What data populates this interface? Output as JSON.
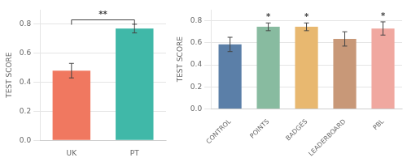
{
  "chart_data": [
    {
      "type": "bar",
      "categories": [
        "UK",
        "PT"
      ],
      "values": [
        0.48,
        0.77
      ],
      "errors": [
        0.05,
        0.03
      ],
      "colors": [
        "#f07860",
        "#40b8a8"
      ],
      "ylabel": "TEST SCORE",
      "ylim": [
        0.0,
        0.9
      ],
      "yticks": [
        {
          "value": 0.0,
          "label": "0.0"
        },
        0.2,
        0.4,
        0.6,
        0.8
      ],
      "grid": true,
      "annotations": [
        {
          "text": "**",
          "from": "UK",
          "to": "PT",
          "y": 0.83
        }
      ]
    },
    {
      "type": "bar",
      "categories": [
        "CONTROL",
        "POINTS",
        "BADGES",
        "LEADERBOARD",
        "PBL"
      ],
      "values": [
        0.585,
        0.745,
        0.745,
        0.635,
        0.73
      ],
      "errors": [
        0.065,
        0.035,
        0.035,
        0.065,
        0.06
      ],
      "colors": [
        "#5b7fa8",
        "#88bba0",
        "#e8b870",
        "#c89878",
        "#f0a8a0"
      ],
      "ylabel": "TEST SCORE",
      "ylim": [
        0.0,
        0.9
      ],
      "yticks": [
        {
          "value": 0.0,
          "label": "0.0"
        },
        0.2,
        0.4,
        0.6,
        0.8
      ],
      "grid": true,
      "annotations": [
        {
          "text": "*",
          "category": "POINTS"
        },
        {
          "text": "*",
          "category": "BADGES"
        },
        {
          "text": "*",
          "category": "PBL"
        }
      ]
    }
  ]
}
